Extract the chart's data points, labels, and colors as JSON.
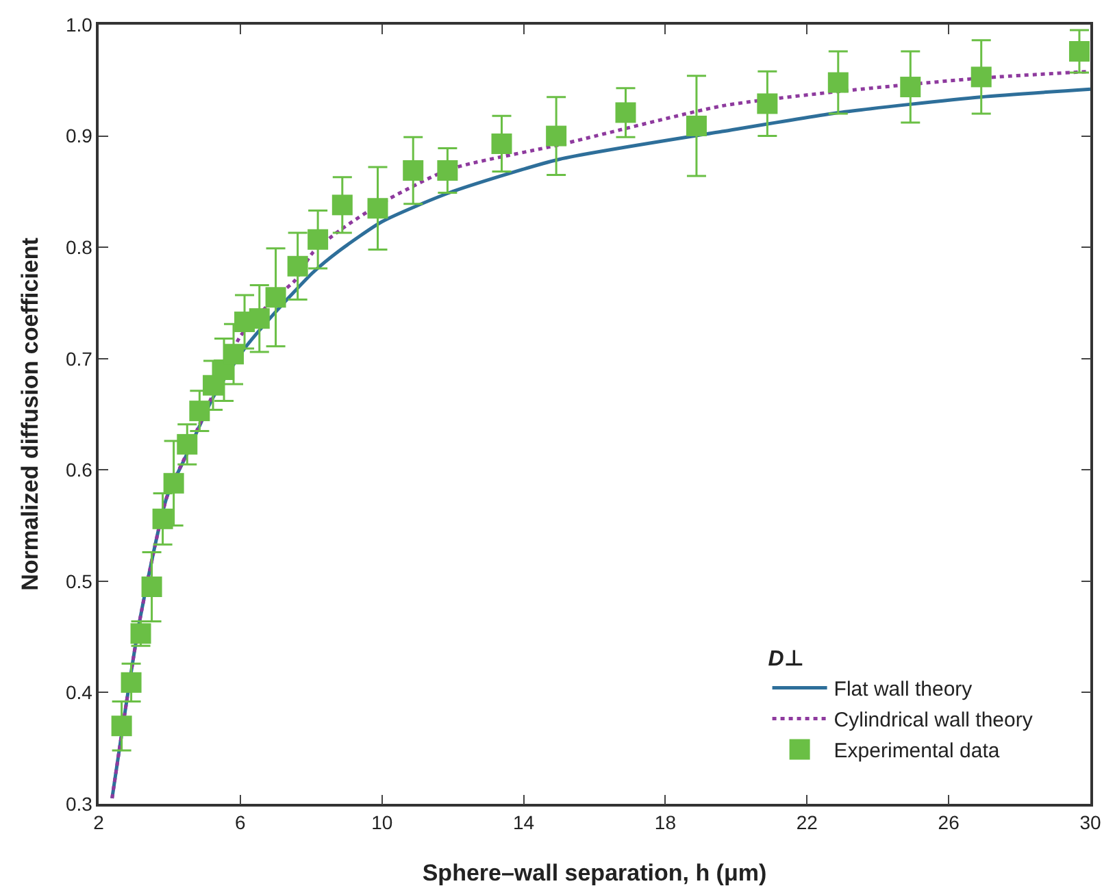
{
  "chart_data": {
    "type": "line",
    "xlabel": "Sphere–wall separation, h (μm)",
    "ylabel": "Normalized diffusion coefficient",
    "legend_title": "D⊥",
    "legend": "bottom right",
    "grid": false,
    "xlim": [
      2,
      30
    ],
    "xticks": [
      2,
      6,
      10,
      14,
      18,
      22,
      26,
      30
    ],
    "ylim": [
      0.3,
      1.0
    ],
    "yticks": [
      {
        "value": 0.3,
        "label": "0.3"
      },
      {
        "value": 0.4,
        "label": "0.4"
      },
      {
        "value": 0.5,
        "label": "0.5"
      },
      {
        "value": 0.6,
        "label": "0.6"
      },
      {
        "value": 0.7,
        "label": "0.7"
      },
      {
        "value": 0.8,
        "label": "0.8"
      },
      {
        "value": 0.9,
        "label": "0.9"
      },
      {
        "value": 1.0,
        "label": "1.0"
      }
    ],
    "series": [
      {
        "name": "Flat wall theory",
        "line_style": "solid",
        "marker": "none",
        "color": "#2e6f9a",
        "x": [
          2.38,
          3.15,
          3.92,
          4.46,
          5.23,
          6.12,
          7.0,
          8.04,
          8.8,
          10,
          11.9,
          15,
          19.6,
          22.9,
          26.9,
          30
        ],
        "values": [
          0.305,
          0.463,
          0.575,
          0.612,
          0.665,
          0.709,
          0.742,
          0.777,
          0.797,
          0.823,
          0.849,
          0.879,
          0.904,
          0.921,
          0.935,
          0.942
        ]
      },
      {
        "name": "Cylindrical wall theory",
        "line_style": "dotted",
        "marker": "none",
        "color": "#8e3a9e",
        "x": [
          2.38,
          3.15,
          3.92,
          4.46,
          5.23,
          6.0,
          7.0,
          7.54,
          8.04,
          8.8,
          10,
          11.9,
          15,
          19.6,
          22.9,
          26.9,
          30
        ],
        "values": [
          0.305,
          0.463,
          0.575,
          0.613,
          0.668,
          0.72,
          0.755,
          0.77,
          0.795,
          0.815,
          0.84,
          0.87,
          0.892,
          0.927,
          0.94,
          0.952,
          0.958
        ]
      },
      {
        "name": "Experimental data",
        "type": "scatter",
        "marker": "square",
        "color": "#6abf45",
        "x": [
          2.65,
          2.92,
          3.19,
          3.5,
          3.81,
          4.12,
          4.5,
          4.85,
          5.23,
          5.54,
          5.81,
          6.12,
          6.54,
          7.0,
          7.62,
          8.19,
          8.88,
          9.88,
          10.88,
          11.85,
          13.38,
          14.92,
          16.88,
          18.88,
          20.88,
          22.88,
          24.92,
          26.92,
          29.69
        ],
        "values": [
          0.37,
          0.409,
          0.453,
          0.495,
          0.556,
          0.588,
          0.623,
          0.653,
          0.676,
          0.69,
          0.704,
          0.733,
          0.736,
          0.755,
          0.783,
          0.807,
          0.838,
          0.835,
          0.869,
          0.869,
          0.893,
          0.9,
          0.921,
          0.909,
          0.929,
          0.948,
          0.944,
          0.953,
          0.976
        ],
        "errors": [
          0.022,
          0.017,
          0.011,
          0.031,
          0.023,
          0.038,
          0.018,
          0.018,
          0.022,
          0.028,
          0.027,
          0.024,
          0.03,
          0.044,
          0.03,
          0.026,
          0.025,
          0.037,
          0.03,
          0.02,
          0.025,
          0.035,
          0.022,
          0.045,
          0.029,
          0.028,
          0.032,
          0.033,
          0.019
        ]
      }
    ]
  }
}
